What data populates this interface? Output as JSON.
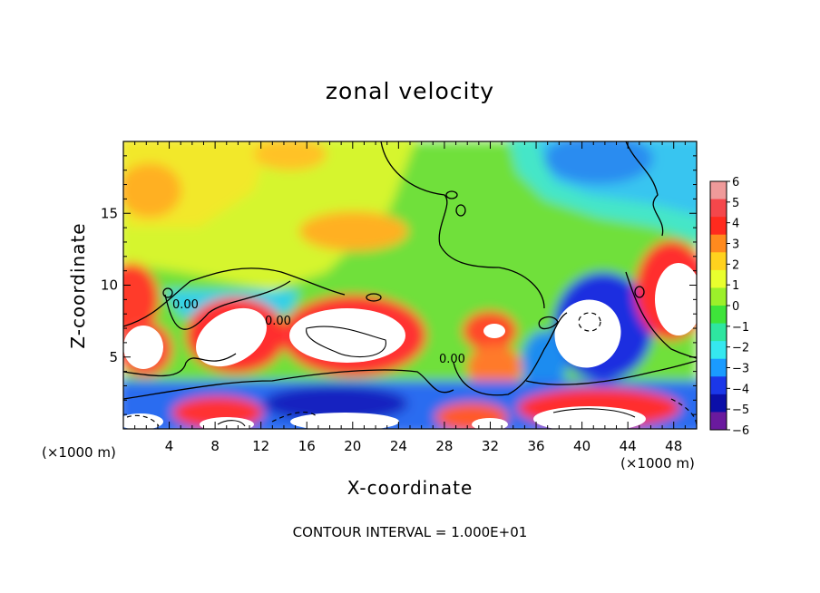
{
  "chart_data": {
    "type": "heatmap",
    "title": "zonal velocity",
    "xlabel": "X-coordinate",
    "ylabel": "Z-coordinate",
    "x_unit_label": "(×1000 m)",
    "x_unit_label_right": "(×1000 m)",
    "footer": "CONTOUR INTERVAL = 1.000E+01",
    "xlim": [
      0,
      50
    ],
    "ylim": [
      0,
      20
    ],
    "x_ticks": [
      4,
      8,
      12,
      16,
      20,
      24,
      28,
      32,
      36,
      40,
      44,
      48
    ],
    "y_ticks": [
      5,
      10,
      15
    ],
    "colorbar": {
      "ticks": [
        6,
        5,
        4,
        3,
        2,
        1,
        0,
        -1,
        -2,
        -3,
        -4,
        -5,
        -6
      ],
      "colors": [
        "#ef9a9a",
        "#f4474b",
        "#ff2a1e",
        "#ff8a1e",
        "#ffd21e",
        "#e9ff2e",
        "#9cf02a",
        "#3ee43a",
        "#2ee6a0",
        "#35e8ef",
        "#1a9bff",
        "#1b37e8",
        "#0b0fa8",
        "#6a1a9e"
      ]
    },
    "contour_labels": [
      "0.00",
      "0.00",
      "0.00"
    ]
  }
}
